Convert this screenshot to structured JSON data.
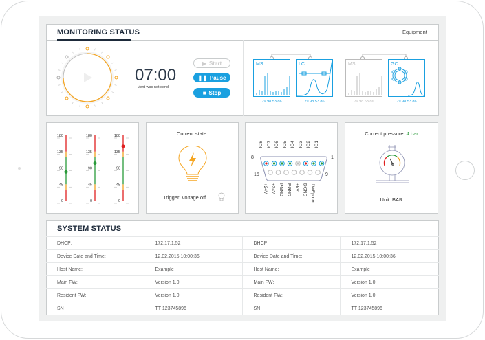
{
  "monitoring": {
    "title": "MONITORING STATUS",
    "equipment_link": "Equipment",
    "timer": {
      "time": "07:00",
      "status": "Vent was not send"
    },
    "buttons": {
      "start": "Start",
      "pause": "Pause",
      "stop": "Stop"
    },
    "devices": [
      {
        "label": "MS",
        "value": "79.98.53.86",
        "active": true
      },
      {
        "label": "LC",
        "value": "79.98.53.86",
        "active": true
      },
      {
        "label": "MS",
        "value": "79.98.53.86",
        "active": false
      },
      {
        "label": "GC",
        "value": "79.98.53.86",
        "active": true
      }
    ]
  },
  "gauges": {
    "ticks": [
      "180",
      "135",
      "90",
      "45",
      "0"
    ],
    "values": [
      79,
      103,
      150
    ],
    "colors": {
      "ok": "#2a9a3a",
      "warn": "#f0a020",
      "bad": "#e02020"
    }
  },
  "state": {
    "title": "Current state:",
    "trigger": "Trigger: voltage off"
  },
  "connector": {
    "top_pins": [
      "IO8",
      "IO7",
      "IO6",
      "IO5",
      "IO4",
      "IO3",
      "IO2",
      "IO1"
    ],
    "bottom_pins": [
      "+24V",
      "+24V",
      "PGND",
      "PGND",
      "+5V",
      "DGND",
      "1WEprom"
    ],
    "num_8": "8",
    "num_1": "1",
    "num_15": "15",
    "num_9": "9",
    "pin_colors": [
      "#e02020",
      "#2a9a3a",
      "#2a9a3a",
      "#2a9a3a",
      "#bbbbbb",
      "#e02020",
      "#2a9a3a",
      "#2a9a3a"
    ]
  },
  "pressure": {
    "label": "Current pressure:",
    "value": "4 bar",
    "unit": "Unit: BAR"
  },
  "system": {
    "title": "SYSTEM STATUS",
    "rows": [
      [
        "DHCP:",
        "172.17.1.52",
        "DHCP:",
        "172.17.1.52"
      ],
      [
        "Device Date and Time:",
        "12.02.2015 10:00:36",
        "Device Date and Time:",
        "12.02.2015 10:00:36"
      ],
      [
        "Host Name:",
        "Example",
        "Host Name:",
        "Example"
      ],
      [
        "Main FW:",
        "Version 1.0",
        "Main FW:",
        "Version 1.0"
      ],
      [
        "Resident FW:",
        "Version 1.0",
        "Resident FW:",
        "Version 1.0"
      ],
      [
        "SN",
        "TT 123745896",
        "SN",
        "TT 123745896"
      ]
    ]
  },
  "accent": "#1aa0e0",
  "orange": "#f5a623"
}
